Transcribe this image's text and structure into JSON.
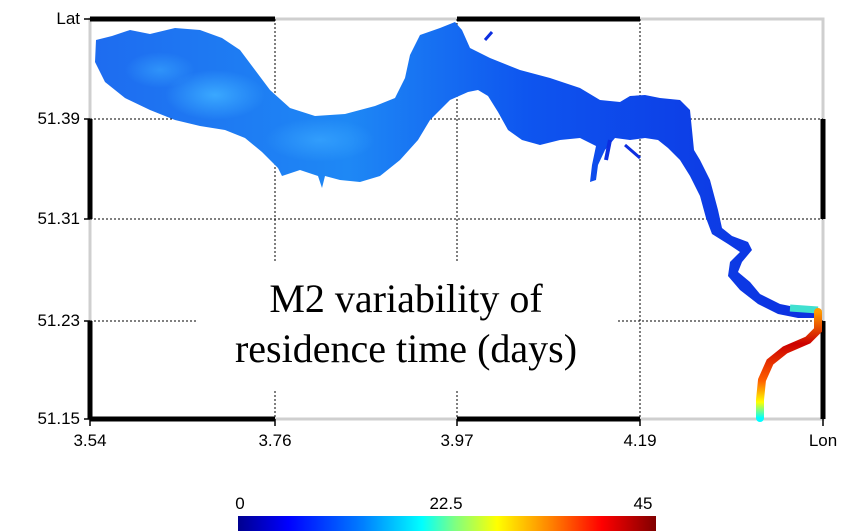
{
  "title": {
    "line1": "M2 variability of",
    "line2": "residence time (days)"
  },
  "axes": {
    "y_label": "Lat",
    "x_label": "Lon",
    "y_ticks": [
      "51.39",
      "51.31",
      "51.23",
      "51.15"
    ],
    "x_ticks": [
      "3.54",
      "3.76",
      "3.97",
      "4.19"
    ]
  },
  "colorbar": {
    "min_label": "0",
    "mid_label": "22.5",
    "max_label": "45",
    "range": [
      0,
      45
    ],
    "colormap": "jet"
  },
  "colors": {
    "low": "#0000ff",
    "mid_low": "#1e90ff",
    "high": "#cc0000",
    "frame": "#000000",
    "gridline": "#000000"
  }
}
